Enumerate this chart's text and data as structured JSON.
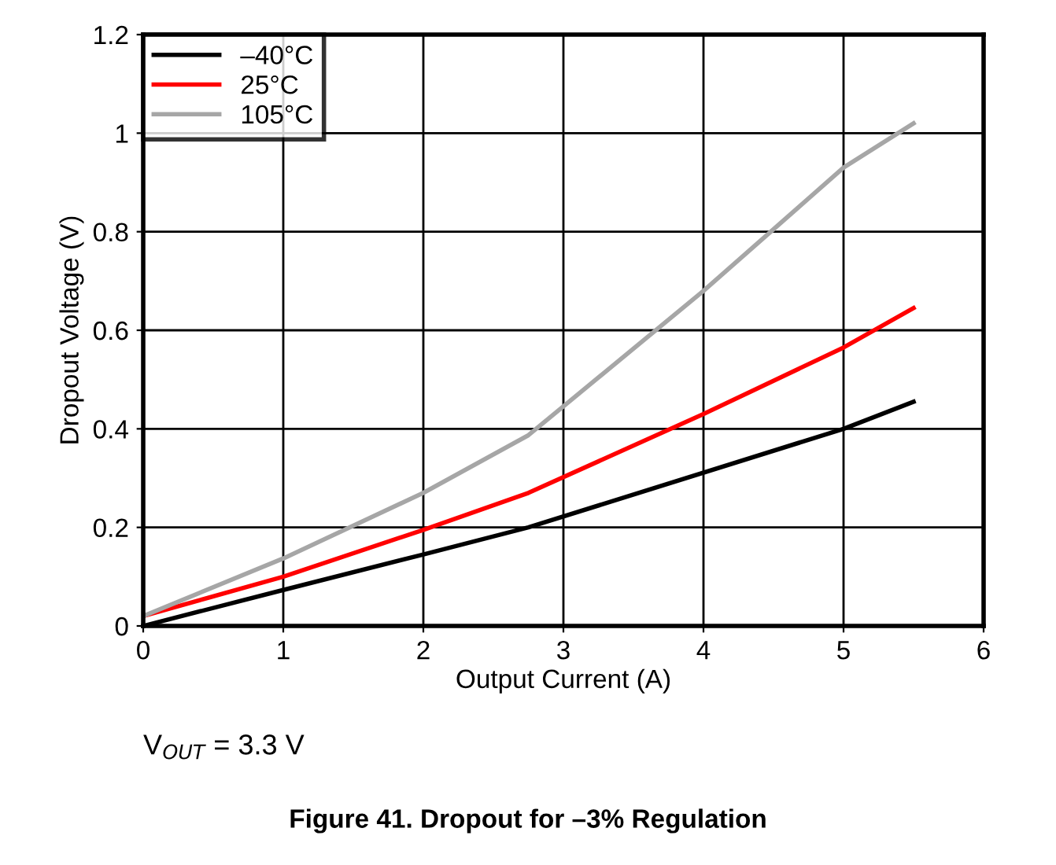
{
  "chart_data": {
    "type": "line",
    "title": "Figure 41. Dropout for –3% Regulation",
    "xlabel": "Output Current (A)",
    "ylabel": "Dropout Voltage (V)",
    "annotations": [
      "V$_{OUT}$ = 3.3 V"
    ],
    "xlim": [
      0,
      6
    ],
    "xticks": [
      0,
      1,
      2,
      3,
      4,
      5,
      6
    ],
    "ylim": [
      0,
      1.2
    ],
    "yticks": [
      0,
      0.2,
      0.4,
      0.6,
      0.8,
      1,
      1.2
    ],
    "grid": true,
    "legend": "top left",
    "marker": "none",
    "line_style": "solid",
    "series": [
      {
        "name": "–40°C",
        "color": "#000000",
        "x": [
          0,
          1,
          2,
          2.75,
          5,
          5.5
        ],
        "values": [
          0,
          0.073,
          0.145,
          0.2,
          0.4,
          0.455
        ]
      },
      {
        "name": "25°C",
        "color": "#ff0000",
        "x": [
          0,
          1,
          2,
          2.75,
          4,
          5,
          5.5
        ],
        "values": [
          0.02,
          0.1,
          0.195,
          0.27,
          0.43,
          0.565,
          0.645
        ]
      },
      {
        "name": "105°C",
        "color": "#a6a6a6",
        "x": [
          0,
          1,
          2,
          2.75,
          4,
          5,
          5.5
        ],
        "values": [
          0.02,
          0.137,
          0.27,
          0.387,
          0.68,
          0.93,
          1.02
        ]
      }
    ]
  }
}
